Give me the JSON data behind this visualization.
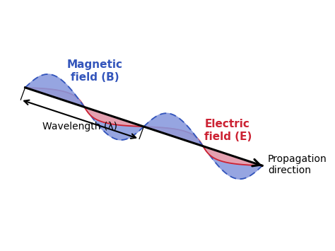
{
  "bg_color": "#ffffff",
  "magnetic_color_fill": "#8899dd",
  "magnetic_color_edge": "#3355bb",
  "electric_color_fill": "#f0a0aa",
  "electric_color_edge": "#cc2233",
  "magnetic_label": "Magnetic\nfield (B)",
  "electric_label": "Electric\nfield (E)",
  "propagation_label": "Propagation\ndirection",
  "wavelength_label": "Wavelength (λ)",
  "n_lobes": 4,
  "amplitude_B": 1.0,
  "amplitude_E": 1.0,
  "wave_periods": 2,
  "figsize": [
    4.74,
    3.55
  ],
  "dpi": 100
}
